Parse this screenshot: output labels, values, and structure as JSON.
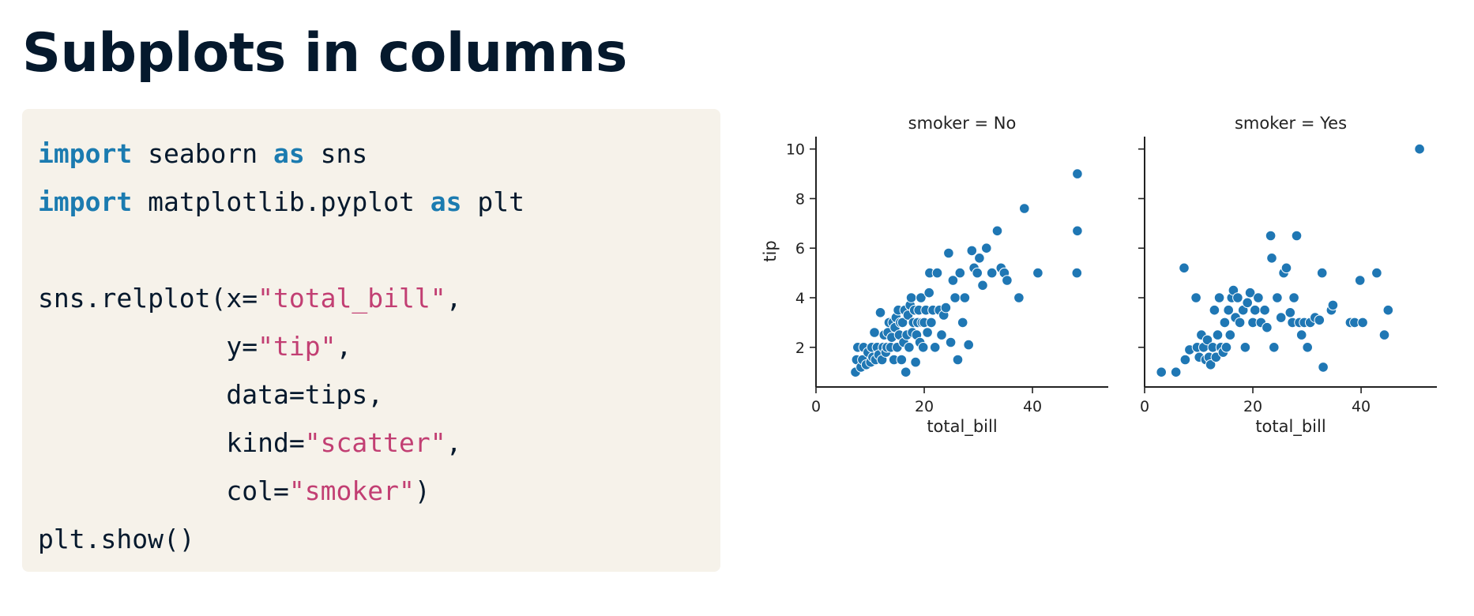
{
  "slide": {
    "title": "Subplots in columns"
  },
  "code": {
    "lines": [
      [
        {
          "t": "kw",
          "v": "import"
        },
        {
          "t": "plain",
          "v": " seaborn "
        },
        {
          "t": "kw",
          "v": "as"
        },
        {
          "t": "plain",
          "v": " sns"
        }
      ],
      [
        {
          "t": "kw",
          "v": "import"
        },
        {
          "t": "plain",
          "v": " matplotlib.pyplot "
        },
        {
          "t": "kw",
          "v": "as"
        },
        {
          "t": "plain",
          "v": " plt"
        }
      ],
      [],
      [
        {
          "t": "plain",
          "v": "sns.relplot(x="
        },
        {
          "t": "str",
          "v": "\"total_bill\""
        },
        {
          "t": "plain",
          "v": ","
        }
      ],
      [
        {
          "t": "plain",
          "v": "            y="
        },
        {
          "t": "str",
          "v": "\"tip\""
        },
        {
          "t": "plain",
          "v": ","
        }
      ],
      [
        {
          "t": "plain",
          "v": "            data=tips,"
        }
      ],
      [
        {
          "t": "plain",
          "v": "            kind="
        },
        {
          "t": "str",
          "v": "\"scatter\""
        },
        {
          "t": "plain",
          "v": ","
        }
      ],
      [
        {
          "t": "plain",
          "v": "            col="
        },
        {
          "t": "str",
          "v": "\"smoker\""
        },
        {
          "t": "plain",
          "v": ")"
        }
      ],
      [
        {
          "t": "plain",
          "v": "plt.show()"
        }
      ]
    ]
  },
  "colors": {
    "marker": "#1f77b4",
    "marker_edge": "#ffffff",
    "keyword": "#1b7bb0",
    "string": "#c23f73",
    "panel": "#f6f2ea",
    "title": "#05192d"
  },
  "chart_data": [
    {
      "type": "scatter",
      "title": "smoker = No",
      "xlabel": "total_bill",
      "ylabel": "tip",
      "xlim": [
        0,
        54
      ],
      "ylim": [
        0.4,
        10.5
      ],
      "xticks": [
        0,
        20,
        40
      ],
      "yticks": [
        2,
        4,
        6,
        8,
        10
      ],
      "points": [
        [
          7.3,
          1.0
        ],
        [
          7.5,
          1.5
        ],
        [
          7.7,
          2.0
        ],
        [
          8.3,
          1.2
        ],
        [
          8.6,
          1.5
        ],
        [
          8.8,
          2.0
        ],
        [
          9.3,
          1.3
        ],
        [
          9.6,
          1.8
        ],
        [
          10.1,
          1.4
        ],
        [
          10.3,
          2.0
        ],
        [
          10.5,
          1.6
        ],
        [
          10.8,
          2.6
        ],
        [
          11.0,
          1.5
        ],
        [
          11.3,
          2.0
        ],
        [
          11.6,
          1.7
        ],
        [
          11.9,
          3.4
        ],
        [
          12.2,
          1.5
        ],
        [
          12.4,
          2.0
        ],
        [
          12.6,
          2.5
        ],
        [
          12.9,
          1.8
        ],
        [
          13.1,
          2.0
        ],
        [
          13.3,
          2.6
        ],
        [
          13.5,
          3.0
        ],
        [
          13.8,
          2.0
        ],
        [
          14.0,
          2.4
        ],
        [
          14.2,
          3.0
        ],
        [
          14.4,
          1.5
        ],
        [
          14.6,
          2.8
        ],
        [
          14.8,
          3.2
        ],
        [
          15.0,
          2.0
        ],
        [
          15.2,
          3.5
        ],
        [
          15.4,
          2.5
        ],
        [
          15.6,
          3.0
        ],
        [
          15.8,
          1.5
        ],
        [
          16.0,
          3.0
        ],
        [
          16.2,
          2.2
        ],
        [
          16.4,
          3.5
        ],
        [
          16.6,
          1.0
        ],
        [
          16.8,
          2.5
        ],
        [
          17.0,
          3.3
        ],
        [
          17.2,
          2.0
        ],
        [
          17.4,
          3.7
        ],
        [
          17.6,
          4.0
        ],
        [
          17.8,
          2.6
        ],
        [
          18.0,
          3.0
        ],
        [
          18.2,
          3.5
        ],
        [
          18.4,
          1.4
        ],
        [
          18.6,
          2.5
        ],
        [
          18.8,
          3.0
        ],
        [
          19.0,
          3.5
        ],
        [
          19.2,
          2.2
        ],
        [
          19.4,
          4.0
        ],
        [
          19.6,
          3.0
        ],
        [
          19.8,
          2.0
        ],
        [
          20.0,
          3.0
        ],
        [
          20.3,
          3.5
        ],
        [
          20.6,
          2.6
        ],
        [
          20.9,
          4.2
        ],
        [
          21.0,
          5.0
        ],
        [
          21.3,
          3.0
        ],
        [
          21.6,
          3.5
        ],
        [
          22.0,
          2.0
        ],
        [
          22.4,
          5.0
        ],
        [
          22.8,
          3.5
        ],
        [
          23.2,
          2.5
        ],
        [
          23.6,
          3.3
        ],
        [
          24.0,
          3.6
        ],
        [
          24.5,
          5.8
        ],
        [
          24.9,
          2.2
        ],
        [
          25.3,
          4.7
        ],
        [
          25.7,
          4.0
        ],
        [
          26.2,
          1.5
        ],
        [
          26.6,
          5.0
        ],
        [
          27.1,
          3.0
        ],
        [
          27.5,
          4.0
        ],
        [
          28.2,
          2.1
        ],
        [
          28.8,
          5.9
        ],
        [
          29.2,
          5.2
        ],
        [
          29.8,
          5.0
        ],
        [
          30.2,
          5.6
        ],
        [
          30.8,
          4.5
        ],
        [
          31.5,
          6.0
        ],
        [
          32.5,
          5.0
        ],
        [
          33.5,
          6.7
        ],
        [
          34.2,
          5.2
        ],
        [
          34.8,
          5.0
        ],
        [
          35.3,
          4.7
        ],
        [
          37.5,
          4.0
        ],
        [
          38.5,
          7.6
        ],
        [
          41.0,
          5.0
        ],
        [
          48.3,
          9.0
        ],
        [
          48.3,
          6.7
        ],
        [
          48.2,
          5.0
        ]
      ]
    },
    {
      "type": "scatter",
      "title": "smoker = Yes",
      "xlabel": "total_bill",
      "ylabel": "",
      "xlim": [
        0,
        54
      ],
      "ylim": [
        0.4,
        10.5
      ],
      "xticks": [
        0,
        20,
        40
      ],
      "yticks": [
        2,
        4,
        6,
        8,
        10
      ],
      "points": [
        [
          3.1,
          1.0
        ],
        [
          5.8,
          1.0
        ],
        [
          7.3,
          5.2
        ],
        [
          7.5,
          1.5
        ],
        [
          8.3,
          1.9
        ],
        [
          9.5,
          4.0
        ],
        [
          9.7,
          2.0
        ],
        [
          10.1,
          1.6
        ],
        [
          10.5,
          2.5
        ],
        [
          10.9,
          2.0
        ],
        [
          11.3,
          1.5
        ],
        [
          11.6,
          2.3
        ],
        [
          11.9,
          1.6
        ],
        [
          12.2,
          1.3
        ],
        [
          12.6,
          2.0
        ],
        [
          12.9,
          3.5
        ],
        [
          13.2,
          1.6
        ],
        [
          13.5,
          2.5
        ],
        [
          13.8,
          4.0
        ],
        [
          14.1,
          2.0
        ],
        [
          14.5,
          1.8
        ],
        [
          14.8,
          3.0
        ],
        [
          15.1,
          2.0
        ],
        [
          15.5,
          3.5
        ],
        [
          15.8,
          2.5
        ],
        [
          16.1,
          4.0
        ],
        [
          16.4,
          4.3
        ],
        [
          16.8,
          3.2
        ],
        [
          17.2,
          4.0
        ],
        [
          17.6,
          3.0
        ],
        [
          18.2,
          3.5
        ],
        [
          18.6,
          2.0
        ],
        [
          19.0,
          3.8
        ],
        [
          19.5,
          4.2
        ],
        [
          20.0,
          3.0
        ],
        [
          20.4,
          3.5
        ],
        [
          21.0,
          4.0
        ],
        [
          21.5,
          3.0
        ],
        [
          22.2,
          3.5
        ],
        [
          22.6,
          2.8
        ],
        [
          23.3,
          6.5
        ],
        [
          23.5,
          5.6
        ],
        [
          23.9,
          2.0
        ],
        [
          24.5,
          4.0
        ],
        [
          25.2,
          3.2
        ],
        [
          25.7,
          5.0
        ],
        [
          26.2,
          5.2
        ],
        [
          26.9,
          3.4
        ],
        [
          27.3,
          3.0
        ],
        [
          27.6,
          4.0
        ],
        [
          28.1,
          6.5
        ],
        [
          28.6,
          3.0
        ],
        [
          29.0,
          2.5
        ],
        [
          29.5,
          3.0
        ],
        [
          30.1,
          2.0
        ],
        [
          30.6,
          3.0
        ],
        [
          31.5,
          3.2
        ],
        [
          32.3,
          3.1
        ],
        [
          32.8,
          5.0
        ],
        [
          33.0,
          1.2
        ],
        [
          34.5,
          3.5
        ],
        [
          34.8,
          3.7
        ],
        [
          38.0,
          3.0
        ],
        [
          38.8,
          3.0
        ],
        [
          39.8,
          4.7
        ],
        [
          40.3,
          3.0
        ],
        [
          42.9,
          5.0
        ],
        [
          44.3,
          2.5
        ],
        [
          45.0,
          3.5
        ],
        [
          50.8,
          10.0
        ]
      ]
    }
  ]
}
